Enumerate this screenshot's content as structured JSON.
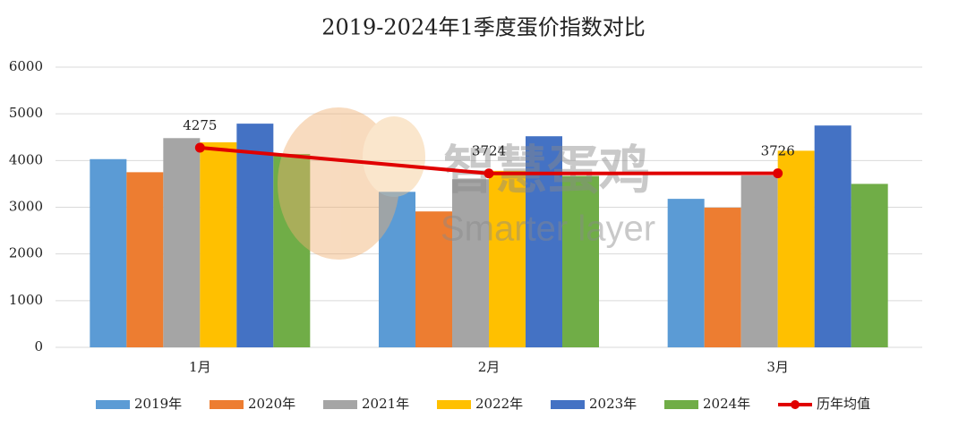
{
  "chart_data": {
    "type": "bar",
    "title": "2019-2024年1季度蛋价指数对比",
    "categories": [
      "1月",
      "2月",
      "3月"
    ],
    "series": [
      {
        "name": "2019年",
        "color": "#5b9bd5",
        "values": [
          4030,
          3330,
          3180
        ]
      },
      {
        "name": "2020年",
        "color": "#ed7d31",
        "values": [
          3750,
          2910,
          2990
        ]
      },
      {
        "name": "2021年",
        "color": "#a5a5a5",
        "values": [
          4480,
          3600,
          3680
        ]
      },
      {
        "name": "2022年",
        "color": "#ffc000",
        "values": [
          4390,
          3780,
          4210
        ]
      },
      {
        "name": "2023年",
        "color": "#4472c4",
        "values": [
          4790,
          4520,
          4750
        ]
      },
      {
        "name": "2024年",
        "color": "#70ad47",
        "values": [
          4140,
          3670,
          3500
        ]
      },
      {
        "name": "历年均值",
        "color": "#e00000",
        "type": "line",
        "values": [
          4275,
          3724,
          3726
        ]
      }
    ],
    "ylim": [
      0,
      6000
    ],
    "yticks": [
      0,
      1000,
      2000,
      3000,
      4000,
      5000,
      6000
    ],
    "grid": true,
    "legend": "bottom",
    "watermark": {
      "text": "智慧蛋鸡",
      "subtitle": "Smarter layer"
    }
  }
}
